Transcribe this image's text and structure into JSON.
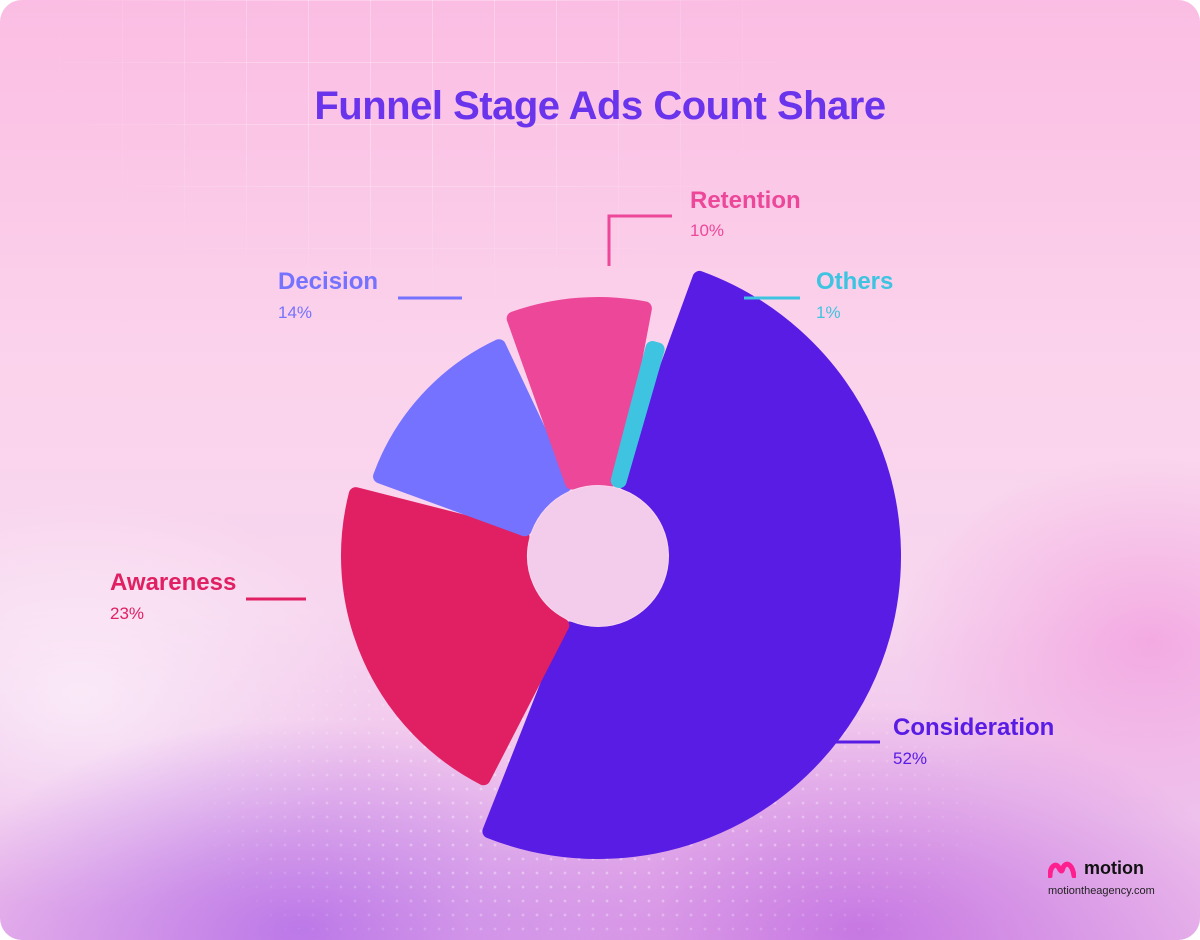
{
  "title": "Funnel Stage Ads Count Share",
  "brand": {
    "name": "motion",
    "url": "motiontheagency.com"
  },
  "chart_data": {
    "type": "pie",
    "variant": "donut",
    "title": "Funnel Stage Ads Count Share",
    "slices": [
      {
        "label": "Consideration",
        "value": 52,
        "display": "52%",
        "color": "#581ce4"
      },
      {
        "label": "Awareness",
        "value": 23,
        "display": "23%",
        "color": "#e02063"
      },
      {
        "label": "Decision",
        "value": 14,
        "display": "14%",
        "color": "#7472fe"
      },
      {
        "label": "Retention",
        "value": 10,
        "display": "10%",
        "color": "#ec4799"
      },
      {
        "label": "Others",
        "value": 1,
        "display": "1%",
        "color": "#3ec4e0"
      }
    ]
  }
}
